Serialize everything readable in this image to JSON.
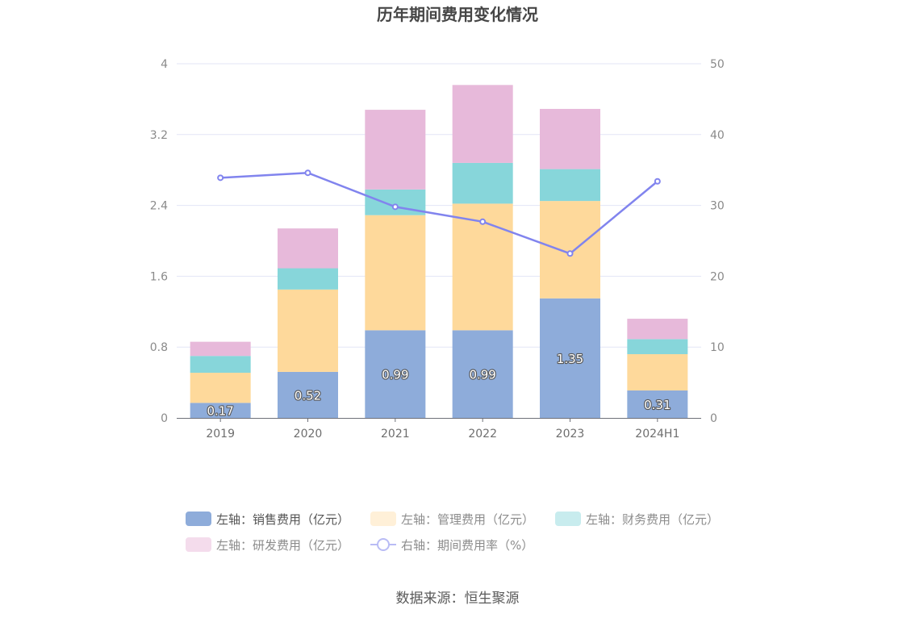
{
  "chart_data": {
    "type": "bar",
    "title": "历年期间费用变化情况",
    "categories": [
      "2019",
      "2020",
      "2021",
      "2022",
      "2023",
      "2024H1"
    ],
    "y_left": {
      "ticks": [
        "0",
        "0.8",
        "1.6",
        "2.4",
        "3.2",
        "4"
      ],
      "ylim": [
        0,
        4
      ]
    },
    "y_right": {
      "ticks": [
        "0",
        "10",
        "20",
        "30",
        "40",
        "50"
      ],
      "ylim": [
        0,
        50
      ]
    },
    "stacked": true,
    "series": [
      {
        "name": "左轴：销售费用（亿元）",
        "type": "bar",
        "axis": "left",
        "color": "#8eacda",
        "values": [
          0.17,
          0.52,
          0.99,
          0.99,
          1.35,
          0.31
        ],
        "labels": [
          "0.17",
          "0.52",
          "0.99",
          "0.99",
          "1.35",
          "0.31"
        ]
      },
      {
        "name": "左轴：管理费用（亿元）",
        "type": "bar",
        "axis": "left",
        "color": "#fed99b",
        "values": [
          0.34,
          0.93,
          1.3,
          1.43,
          1.1,
          0.41
        ]
      },
      {
        "name": "左轴：财务费用（亿元）",
        "type": "bar",
        "axis": "left",
        "color": "#87d6da",
        "values": [
          0.19,
          0.24,
          0.29,
          0.46,
          0.36,
          0.17
        ]
      },
      {
        "name": "左轴：研发费用（亿元）",
        "type": "bar",
        "axis": "left",
        "color": "#e7b9da",
        "values": [
          0.16,
          0.45,
          0.9,
          0.88,
          0.68,
          0.23
        ]
      },
      {
        "name": "右轴：期间费用率（%）",
        "type": "line",
        "axis": "right",
        "color": "#8184ee",
        "values": [
          33.9,
          34.6,
          29.8,
          27.7,
          23.2,
          33.4
        ]
      }
    ],
    "grid": true,
    "legend_position": "bottom"
  },
  "legend_colors": {
    "light": [
      "#8eacda",
      "#fff0d8",
      "#c8ecee",
      "#f4dcec",
      "#b9bcf5"
    ]
  },
  "source": "数据来源：恒生聚源"
}
